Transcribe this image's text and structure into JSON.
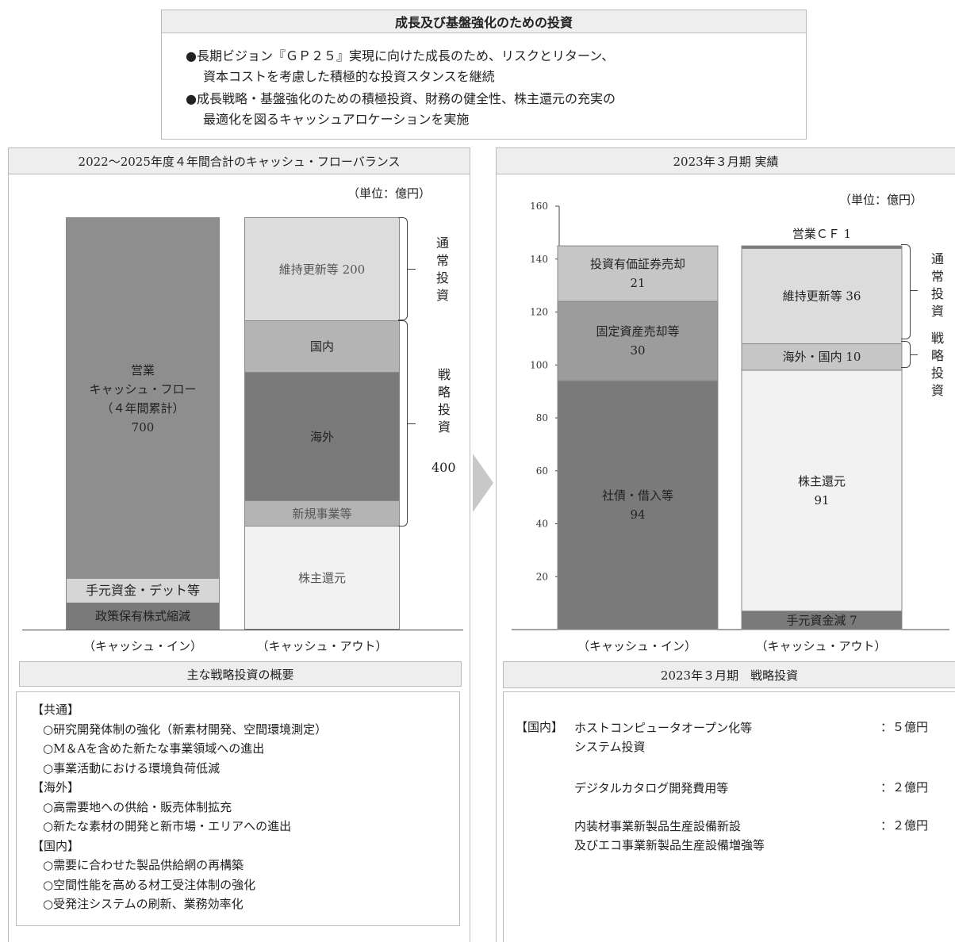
{
  "header": {
    "title": "成長及び基盤強化のための投資",
    "bullets": [
      "●長期ビジョン『ＧＰ２５』実現に向けた成長のため、リスクとリターン、",
      "資本コストを考慮した積極的な投資スタンスを継続",
      "●成長戦略・基盤強化のための積極投資、財務の健全性、株主還元の充実の",
      "最適化を図るキャッシュアロケーションを実施"
    ]
  },
  "left_panel": {
    "title": "2022～2025年度４年間合計のキャッシュ・フローバランス",
    "unit": "（単位：億円）",
    "cash_in_caption": "（キャッシュ・イン）",
    "cash_out_caption": "（キャッシュ・アウト）",
    "brace_normal": [
      "通",
      "常",
      "投",
      "資"
    ],
    "brace_strategic": [
      "戦",
      "略",
      "投",
      "資"
    ],
    "brace_strategic_value": "400"
  },
  "right_panel": {
    "title": "2023年３月期 実績",
    "unit": "（単位：億円）",
    "cash_in_caption": "（キャッシュ・イン）",
    "cash_out_caption": "（キャッシュ・アウト）",
    "brace_normal": [
      "通",
      "常",
      "投",
      "資"
    ],
    "brace_strategic": [
      "戦",
      "略",
      "投",
      "資"
    ]
  },
  "chart_data": [
    {
      "type": "bar",
      "title": "2022～2025年度４年間合計のキャッシュ・フローバランス",
      "unit": "億円",
      "categories": [
        "キャッシュ・イン",
        "キャッシュ・アウト"
      ],
      "stacks": [
        {
          "category": "キャッシュ・イン",
          "segments": [
            {
              "label": "政策保有株式縮減",
              "value": null
            },
            {
              "label": "手元資金・デット等",
              "value": null
            },
            {
              "label_lines": [
                "営業",
                "キャッシュ・フロー",
                "（４年間累計）",
                "700"
              ],
              "value": 700
            }
          ]
        },
        {
          "category": "キャッシュ・アウト",
          "segments": [
            {
              "label": "株主還元",
              "value": null
            },
            {
              "label": "新規事業等",
              "value": null
            },
            {
              "label": "海外",
              "value": null
            },
            {
              "label": "国内",
              "value": null
            },
            {
              "label": "維持更新等 200",
              "value": 200
            }
          ]
        }
      ]
    },
    {
      "type": "bar",
      "title": "2023年３月期 実績",
      "unit": "億円",
      "ylim": [
        0,
        160
      ],
      "yticks": [
        20,
        40,
        60,
        80,
        100,
        120,
        140,
        160
      ],
      "categories": [
        "キャッシュ・イン",
        "キャッシュ・アウト"
      ],
      "stacks": [
        {
          "category": "キャッシュ・イン",
          "segments": [
            {
              "label_lines": [
                "社債・借入等",
                "94"
              ],
              "value": 94,
              "color": "#7a7a7a"
            },
            {
              "label_lines": [
                "固定資産売却等",
                "30"
              ],
              "value": 30,
              "color": "#9c9c9c"
            },
            {
              "label_lines": [
                "投資有価証券売却",
                "21"
              ],
              "value": 21,
              "color": "#c6c6c6"
            }
          ]
        },
        {
          "category": "キャッシュ・アウト",
          "segments": [
            {
              "label_lines": [
                "手元資金減 7"
              ],
              "value": 7,
              "color": "#7a7a7a"
            },
            {
              "label_lines": [
                "株主還元",
                "91"
              ],
              "value": 91,
              "color": "#f2f2f2"
            },
            {
              "label_lines": [
                "海外・国内 10"
              ],
              "value": 10,
              "color": "#c6c6c6"
            },
            {
              "label_lines": [
                "維持更新等 36"
              ],
              "value": 36,
              "color": "#dcdcdc"
            },
            {
              "label_lines": [
                "営業ＣＦ 1"
              ],
              "value": 1,
              "color": "#7a7a7a"
            }
          ]
        }
      ]
    }
  ],
  "strategic_overview": {
    "title": "主な戦略投資の概要",
    "lines": [
      "【共通】",
      "○研究開発体制の強化（新素材開発、空間環境測定）",
      "○M＆Aを含めた新たな事業領域への進出",
      "○事業活動における環境負荷低減",
      "【海外】",
      "○高需要地への供給・販売体制拡充",
      "○新たな素材の開発と新市場・エリアへの進出",
      "【国内】",
      "○需要に合わせた製品供給網の再構築",
      "○空間性能を高める材工受注体制の強化",
      "○受発注システムの刷新、業務効率化"
    ]
  },
  "fy2023_strategic": {
    "title": "2023年３月期　戦略投資",
    "category_label": "【国内】",
    "items": [
      {
        "lines": [
          "ホストコンピュータオープン化等",
          "システム投資"
        ],
        "amount": "：５億円"
      },
      {
        "lines": [
          "デジタルカタログ開発費用等"
        ],
        "amount": "：２億円"
      },
      {
        "lines": [
          "内装材事業新製品生産設備新設",
          "及びエコ事業新製品生産設備増強等"
        ],
        "amount": "：２億円"
      }
    ]
  }
}
